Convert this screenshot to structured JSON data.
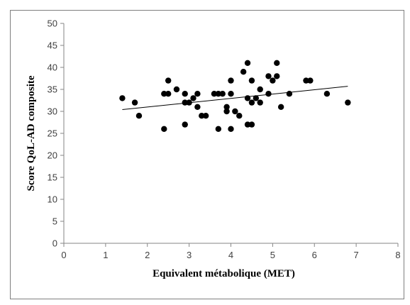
{
  "chart_data": {
    "type": "scatter",
    "title": "",
    "xlabel": "Equivalent métabolique (MET)",
    "ylabel": "Score QoL-AD composite",
    "xlim": [
      0,
      8
    ],
    "ylim": [
      0,
      50
    ],
    "x_ticks": [
      "0",
      "1",
      "2",
      "3",
      "4",
      "5",
      "6",
      "7",
      "8"
    ],
    "y_ticks": [
      "0",
      "5",
      "10",
      "15",
      "20",
      "25",
      "30",
      "35",
      "40",
      "45",
      "50"
    ],
    "grid": false,
    "legend": "none",
    "trendline": {
      "type": "linear",
      "x": [
        1.4,
        6.8
      ],
      "y": [
        30.4,
        35.7
      ]
    },
    "points": [
      [
        1.4,
        33
      ],
      [
        1.7,
        32
      ],
      [
        1.8,
        29
      ],
      [
        2.4,
        34
      ],
      [
        2.4,
        26
      ],
      [
        2.5,
        34
      ],
      [
        2.5,
        37
      ],
      [
        2.7,
        35
      ],
      [
        2.9,
        34
      ],
      [
        2.9,
        32
      ],
      [
        2.9,
        27
      ],
      [
        3.0,
        32
      ],
      [
        3.1,
        33
      ],
      [
        3.2,
        31
      ],
      [
        3.2,
        34
      ],
      [
        3.3,
        29
      ],
      [
        3.4,
        29
      ],
      [
        3.6,
        34
      ],
      [
        3.7,
        34
      ],
      [
        3.7,
        26
      ],
      [
        3.8,
        34
      ],
      [
        3.9,
        31
      ],
      [
        3.9,
        30
      ],
      [
        4.0,
        37
      ],
      [
        4.0,
        34
      ],
      [
        4.0,
        26
      ],
      [
        4.1,
        30
      ],
      [
        4.2,
        29
      ],
      [
        4.3,
        39
      ],
      [
        4.4,
        41
      ],
      [
        4.4,
        33
      ],
      [
        4.4,
        27
      ],
      [
        4.5,
        37
      ],
      [
        4.5,
        32
      ],
      [
        4.5,
        27
      ],
      [
        4.6,
        33
      ],
      [
        4.7,
        35
      ],
      [
        4.7,
        32
      ],
      [
        4.9,
        38
      ],
      [
        4.9,
        34
      ],
      [
        5.0,
        37
      ],
      [
        5.1,
        41
      ],
      [
        5.1,
        38
      ],
      [
        5.2,
        31
      ],
      [
        5.4,
        34
      ],
      [
        5.8,
        37
      ],
      [
        5.9,
        37
      ],
      [
        6.3,
        34
      ],
      [
        6.8,
        32
      ]
    ]
  },
  "colors": {
    "points": "#000000",
    "axis": "#868686",
    "tick_text": "#404040",
    "frame": "#7f7f7f"
  }
}
